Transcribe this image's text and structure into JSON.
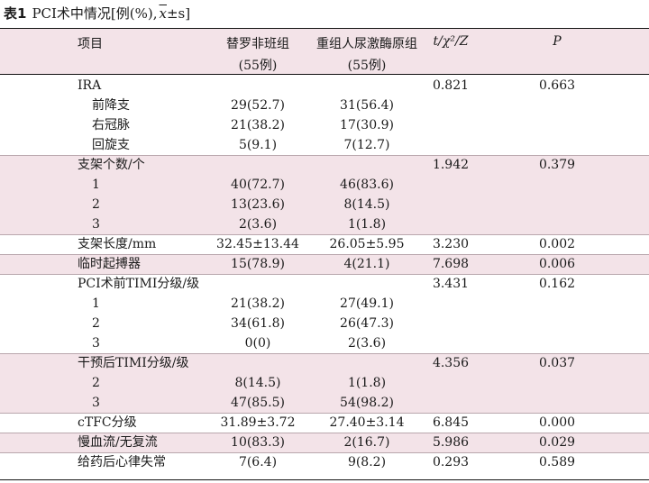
{
  "caption": {
    "label": "表1",
    "title": "PCI术中情况[例(%),",
    "stat_mean": "x",
    "stat_rest": "±s]"
  },
  "headers": {
    "item": "项目",
    "group1": "替罗非班组",
    "group1_n": "(55例)",
    "group2": "重组人尿激酶原组",
    "group2_n": "(55例)",
    "test": "t/χ²/Z",
    "p": "P"
  },
  "rows": [
    {
      "label": "IRA",
      "indent": false,
      "g1": "",
      "g2": "",
      "stat": "0.821",
      "p": "0.663"
    },
    {
      "label": "前降支",
      "indent": true,
      "g1": "29(52.7)",
      "g2": "31(56.4)",
      "stat": "",
      "p": ""
    },
    {
      "label": "右冠脉",
      "indent": true,
      "g1": "21(38.2)",
      "g2": "17(30.9)",
      "stat": "",
      "p": ""
    },
    {
      "label": "回旋支",
      "indent": true,
      "g1": "5(9.1)",
      "g2": "7(12.7)",
      "stat": "",
      "p": ""
    },
    {
      "label": "支架个数/个",
      "indent": false,
      "g1": "",
      "g2": "",
      "stat": "1.942",
      "p": "0.379"
    },
    {
      "label": "1",
      "indent": true,
      "g1": "40(72.7)",
      "g2": "46(83.6)",
      "stat": "",
      "p": ""
    },
    {
      "label": "2",
      "indent": true,
      "g1": "13(23.6)",
      "g2": "8(14.5)",
      "stat": "",
      "p": ""
    },
    {
      "label": "3",
      "indent": true,
      "g1": "2(3.6)",
      "g2": "1(1.8)",
      "stat": "",
      "p": ""
    },
    {
      "label": "支架长度/mm",
      "indent": false,
      "g1": "32.45±13.44",
      "g2": "26.05±5.95",
      "stat": "3.230",
      "p": "0.002"
    },
    {
      "label": "临时起搏器",
      "indent": false,
      "g1": "15(78.9)",
      "g2": "4(21.1)",
      "stat": "7.698",
      "p": "0.006"
    },
    {
      "label": "PCI术前TIMI分级/级",
      "indent": false,
      "g1": "",
      "g2": "",
      "stat": "3.431",
      "p": "0.162"
    },
    {
      "label": "1",
      "indent": true,
      "g1": "21(38.2)",
      "g2": "27(49.1)",
      "stat": "",
      "p": ""
    },
    {
      "label": "2",
      "indent": true,
      "g1": "34(61.8)",
      "g2": "26(47.3)",
      "stat": "",
      "p": ""
    },
    {
      "label": "3",
      "indent": true,
      "g1": "0(0)",
      "g2": "2(3.6)",
      "stat": "",
      "p": ""
    },
    {
      "label": "干预后TIMI分级/级",
      "indent": false,
      "g1": "",
      "g2": "",
      "stat": "4.356",
      "p": "0.037"
    },
    {
      "label": "2",
      "indent": true,
      "g1": "8(14.5)",
      "g2": "1(1.8)",
      "stat": "",
      "p": ""
    },
    {
      "label": "3",
      "indent": true,
      "g1": "47(85.5)",
      "g2": "54(98.2)",
      "stat": "",
      "p": ""
    },
    {
      "label": "cTFC分级",
      "indent": false,
      "g1": "31.89±3.72",
      "g2": "27.40±3.14",
      "stat": "6.845",
      "p": "0.000"
    },
    {
      "label": "慢血流/无复流",
      "indent": false,
      "g1": "10(83.3)",
      "g2": "2(16.7)",
      "stat": "5.986",
      "p": "0.029"
    },
    {
      "label": "给药后心律失常",
      "indent": false,
      "g1": "7(6.4)",
      "g2": "9(8.2)",
      "stat": "0.293",
      "p": "0.589"
    }
  ],
  "colors": {
    "band": "#f3e3e8",
    "rule": "#111111",
    "text": "#1a1a1a"
  }
}
